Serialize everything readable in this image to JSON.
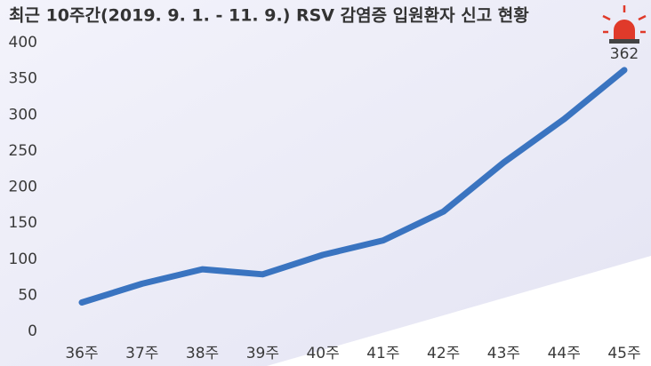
{
  "chart_data": {
    "type": "line",
    "title": "최근 10주간(2019. 9. 1. - 11. 9.) RSV 감염증 입원환자 신고 현황",
    "categories": [
      "36주",
      "37주",
      "38주",
      "39주",
      "40주",
      "41주",
      "42주",
      "43주",
      "44주",
      "45주"
    ],
    "values": [
      40,
      66,
      86,
      79,
      106,
      126,
      166,
      234,
      294,
      362
    ],
    "color": "#3a74c0",
    "ylim": [
      0,
      400
    ],
    "yticks": [
      0,
      50,
      100,
      150,
      200,
      250,
      300,
      350,
      400
    ]
  }
}
